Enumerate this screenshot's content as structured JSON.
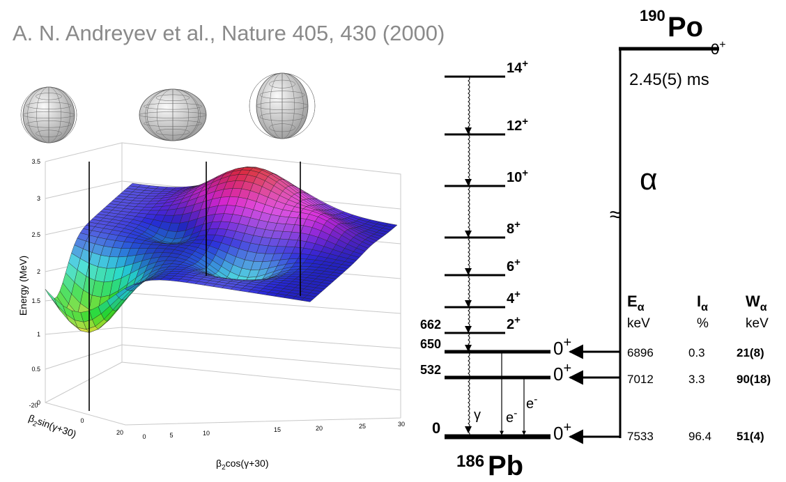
{
  "citation": "A. N. Andreyev et al., Nature 405, 430 (2000)",
  "surface_plot": {
    "z_label": "Energy (MeV)",
    "z_ticks": [
      "3.5",
      "3",
      "2.5",
      "2",
      "1.5",
      "1",
      "0.5",
      "0"
    ],
    "x_label": {
      "symbol": "β",
      "subscript": "2",
      "text": "cos(γ+30)"
    },
    "x_ticks": [
      "0",
      "5",
      "10",
      "15",
      "20",
      "25",
      "30"
    ],
    "y_label": {
      "symbol": "β",
      "subscript": "2",
      "text": "sin(γ+30)"
    },
    "y_ticks": [
      "-20",
      "0",
      "20"
    ]
  },
  "parent": {
    "mass": "190",
    "symbol": "Po",
    "spin": "0",
    "parity": "+",
    "half_life": "2.45(5) ms",
    "decay": "α",
    "break": "≈"
  },
  "daughter": {
    "mass": "186",
    "symbol": "Pb"
  },
  "band_levels": [
    {
      "spin": "14",
      "parity": "+"
    },
    {
      "spin": "12",
      "parity": "+"
    },
    {
      "spin": "10",
      "parity": "+"
    },
    {
      "spin": "8",
      "parity": "+"
    },
    {
      "spin": "6",
      "parity": "+"
    },
    {
      "spin": "4",
      "parity": "+"
    },
    {
      "spin": "2",
      "parity": "+",
      "energy": "662"
    }
  ],
  "zero_plus_levels": [
    {
      "spin": "0",
      "parity": "+",
      "energy": "650"
    },
    {
      "spin": "0",
      "parity": "+",
      "energy": "532"
    },
    {
      "spin": "0",
      "parity": "+",
      "energy": "0"
    }
  ],
  "gamma": "γ",
  "electron": {
    "symbol": "e",
    "charge": "-"
  },
  "table": {
    "headers": [
      {
        "symbol": "E",
        "subscript": "α",
        "unit": "keV"
      },
      {
        "symbol": "I",
        "subscript": "α",
        "unit": "%"
      },
      {
        "symbol": "W",
        "subscript": "α",
        "unit": "keV"
      }
    ],
    "rows": [
      [
        "6896",
        "0.3",
        "21(8)"
      ],
      [
        "7012",
        "3.3",
        "90(18)"
      ],
      [
        "7533",
        "96.4",
        "51(4)"
      ]
    ]
  }
}
